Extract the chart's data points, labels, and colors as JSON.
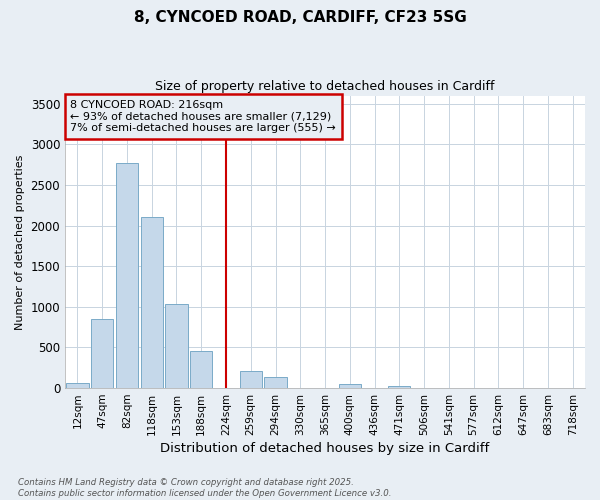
{
  "title_line1": "8, CYNCOED ROAD, CARDIFF, CF23 5SG",
  "title_line2": "Size of property relative to detached houses in Cardiff",
  "xlabel": "Distribution of detached houses by size in Cardiff",
  "ylabel": "Number of detached properties",
  "bin_labels": [
    "12sqm",
    "47sqm",
    "82sqm",
    "118sqm",
    "153sqm",
    "188sqm",
    "224sqm",
    "259sqm",
    "294sqm",
    "330sqm",
    "365sqm",
    "400sqm",
    "436sqm",
    "471sqm",
    "506sqm",
    "541sqm",
    "577sqm",
    "612sqm",
    "647sqm",
    "683sqm",
    "718sqm"
  ],
  "bar_values": [
    60,
    850,
    2775,
    2100,
    1030,
    460,
    0,
    210,
    140,
    0,
    0,
    50,
    0,
    20,
    0,
    0,
    0,
    0,
    0,
    0,
    0
  ],
  "bar_color": "#c5d8ea",
  "bar_edge_color": "#7aaac8",
  "highlight_index": 6,
  "highlight_color": "#cc0000",
  "ylim": [
    0,
    3600
  ],
  "yticks": [
    0,
    500,
    1000,
    1500,
    2000,
    2500,
    3000,
    3500
  ],
  "legend_text_line1": "8 CYNCOED ROAD: 216sqm",
  "legend_text_line2": "← 93% of detached houses are smaller (7,129)",
  "legend_text_line3": "7% of semi-detached houses are larger (555) →",
  "legend_box_color": "#cc0000",
  "footer_line1": "Contains HM Land Registry data © Crown copyright and database right 2025.",
  "footer_line2": "Contains public sector information licensed under the Open Government Licence v3.0.",
  "fig_background_color": "#e8eef4",
  "plot_background_color": "#ffffff",
  "grid_color": "#c8d4e0"
}
